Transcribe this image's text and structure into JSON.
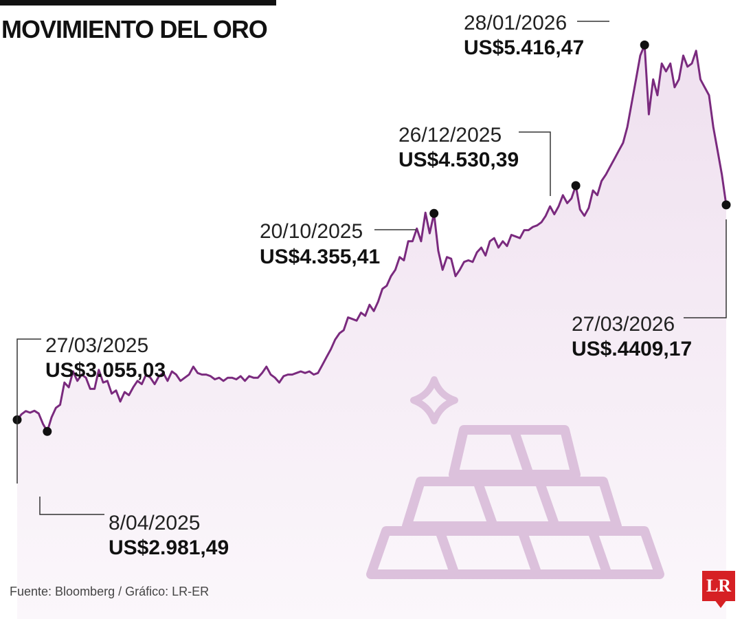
{
  "title": "MOVIMIENTO DEL ORO",
  "source": "Fuente: Bloomberg / Gráfico: LR-ER",
  "logo_text": "LR",
  "colors": {
    "line": "#7a2a7e",
    "area": "#f3e9f3",
    "icon": "#dcc1dc",
    "logo": "#d62024"
  },
  "chart_data": {
    "type": "area",
    "x_start": "27/03/2025",
    "x_end": "27/03/2026",
    "ylim": [
      1800,
      5700
    ],
    "grid": false,
    "series": [
      {
        "values": [
          3055.03,
          3090,
          3110,
          3100,
          3112,
          3095,
          3030,
          2981.49,
          3070,
          3130,
          3150,
          3290,
          3260,
          3360,
          3300,
          3340,
          3320,
          3250,
          3250,
          3370,
          3290,
          3300,
          3220,
          3240,
          3170,
          3230,
          3210,
          3260,
          3300,
          3280,
          3340,
          3320,
          3280,
          3330,
          3350,
          3300,
          3360,
          3340,
          3300,
          3320,
          3340,
          3390,
          3350,
          3340,
          3340,
          3330,
          3310,
          3320,
          3300,
          3320,
          3320,
          3310,
          3330,
          3300,
          3330,
          3320,
          3320,
          3350,
          3390,
          3340,
          3320,
          3290,
          3330,
          3340,
          3340,
          3350,
          3360,
          3350,
          3360,
          3340,
          3350,
          3400,
          3450,
          3500,
          3560,
          3600,
          3620,
          3700,
          3690,
          3680,
          3730,
          3710,
          3780,
          3740,
          3800,
          3880,
          3900,
          3960,
          4000,
          4080,
          4060,
          4180,
          4180,
          4260,
          4180,
          4360,
          4230,
          4355.41,
          4120,
          4000,
          4080,
          4070,
          3960,
          4000,
          4050,
          4060,
          4050,
          4110,
          4140,
          4090,
          4180,
          4200,
          4140,
          4180,
          4150,
          4220,
          4210,
          4200,
          4250,
          4250,
          4270,
          4280,
          4300,
          4340,
          4400,
          4350,
          4400,
          4470,
          4420,
          4450,
          4530.39,
          4380,
          4340,
          4390,
          4500,
          4470,
          4560,
          4600,
          4650,
          4700,
          4750,
          4800,
          4900,
          5050,
          5200,
          5350,
          5416.47,
          4980,
          5200,
          5100,
          5300,
          5250,
          5300,
          5150,
          5200,
          5350,
          5280,
          5300,
          5380,
          5200,
          5150,
          5100,
          4900,
          4750,
          4600,
          4409.17
        ]
      }
    ],
    "annotations": [
      {
        "date": "27/03/2025",
        "value": "US$3.055,03"
      },
      {
        "date": "8/04/2025",
        "value": "US$2.981,49"
      },
      {
        "date": "20/10/2025",
        "value": "US$4.355,41"
      },
      {
        "date": "26/12/2025",
        "value": "US$4.530,39"
      },
      {
        "date": "28/01/2026",
        "value": "US$5.416,47"
      },
      {
        "date": "27/03/2026",
        "value": "US$.4409,17"
      }
    ]
  }
}
